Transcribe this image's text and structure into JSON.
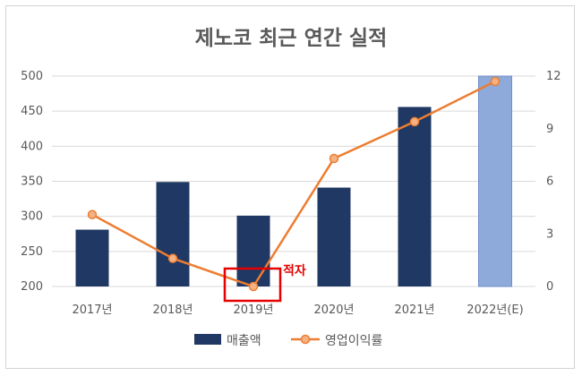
{
  "chart_data": {
    "type": "bar",
    "title": "제노코 최근 연간 실적",
    "categories": [
      "2017년",
      "2018년",
      "2019년",
      "2020년",
      "2021년",
      "2022년(E)"
    ],
    "series": [
      {
        "name": "매출액",
        "kind": "bar",
        "axis": "left",
        "values": [
          281,
          349,
          301,
          341,
          456,
          500
        ],
        "colors": [
          "#203864",
          "#203864",
          "#203864",
          "#203864",
          "#203864",
          "#8eaadb"
        ]
      },
      {
        "name": "영업이익률",
        "kind": "line",
        "axis": "right",
        "values": [
          4.1,
          1.6,
          0.0,
          7.3,
          9.4,
          11.7
        ],
        "color": "#ed7d31"
      }
    ],
    "y_left": {
      "ylim": [
        200,
        500
      ],
      "ticks": [
        "200",
        "250",
        "300",
        "350",
        "400",
        "450",
        "500"
      ]
    },
    "y_right": {
      "ylim": [
        0,
        12
      ],
      "ticks": [
        "0",
        "3",
        "6",
        "9",
        "12"
      ]
    },
    "grid": "horizontal",
    "legend": "bottom",
    "annotation": {
      "text": "적자",
      "category": "2019년",
      "color": "#e60000"
    }
  }
}
